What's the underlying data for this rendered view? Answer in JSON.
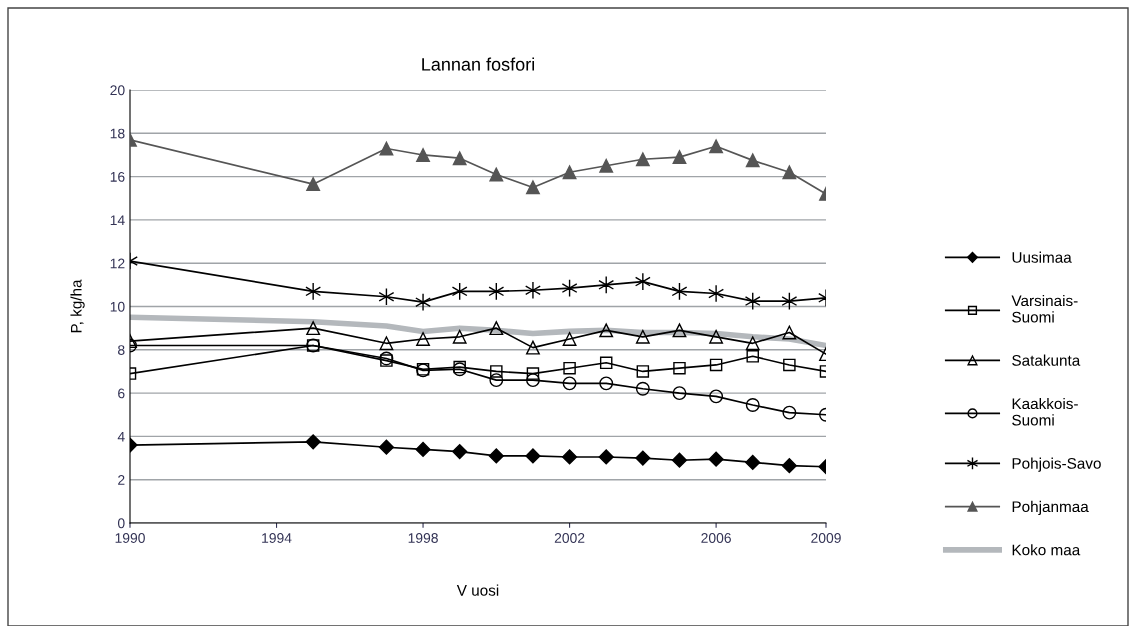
{
  "chart_data": {
    "type": "line",
    "title": "Lannan fosfori",
    "xlabel": "V uosi",
    "ylabel": "P, kg/ha",
    "x": [
      1990,
      1995,
      1997,
      1998,
      1999,
      2000,
      2001,
      2002,
      2003,
      2004,
      2005,
      2006,
      2007,
      2008,
      2009
    ],
    "xlim": [
      1990,
      2009
    ],
    "xticks": [
      1990,
      1994,
      1998,
      2002,
      2006,
      2009
    ],
    "ylim": [
      0,
      20
    ],
    "yticks": [
      0,
      2,
      4,
      6,
      8,
      10,
      12,
      14,
      16,
      18,
      20
    ],
    "grid": "y",
    "legend": "right",
    "series": [
      {
        "name": "Uusimaa",
        "color": "#000000",
        "marker": "diamond",
        "values": [
          3.6,
          3.75,
          3.5,
          3.4,
          3.3,
          3.1,
          3.1,
          3.05,
          3.05,
          3.0,
          2.9,
          2.95,
          2.8,
          2.65,
          2.6
        ]
      },
      {
        "name": "Varsinais-\nSuomi",
        "color": "#000000",
        "marker": "square",
        "values": [
          6.9,
          8.2,
          7.5,
          7.1,
          7.2,
          7.0,
          6.9,
          7.15,
          7.4,
          7.0,
          7.15,
          7.3,
          7.7,
          7.3,
          7.0
        ]
      },
      {
        "name": "Satakunta",
        "color": "#000000",
        "marker": "triangle",
        "values": [
          8.4,
          9.0,
          8.3,
          8.5,
          8.6,
          9.0,
          8.1,
          8.5,
          8.9,
          8.6,
          8.9,
          8.6,
          8.3,
          8.8,
          7.8
        ]
      },
      {
        "name": "Kaakkois-\nSuomi",
        "color": "#000000",
        "marker": "circle",
        "values": [
          8.2,
          8.2,
          7.6,
          7.05,
          7.1,
          6.6,
          6.6,
          6.45,
          6.45,
          6.2,
          6.0,
          5.85,
          5.45,
          5.1,
          5.0
        ]
      },
      {
        "name": "Pohjois-Savo",
        "color": "#000000",
        "marker": "cross",
        "values": [
          12.1,
          10.7,
          10.45,
          10.2,
          10.7,
          10.7,
          10.75,
          10.85,
          11.0,
          11.15,
          10.7,
          10.6,
          10.25,
          10.25,
          10.4
        ]
      },
      {
        "name": "Pohjanmaa",
        "color": "#555555",
        "marker": "triangle",
        "values": [
          17.7,
          15.65,
          17.3,
          17.0,
          16.85,
          16.1,
          15.5,
          16.2,
          16.5,
          16.8,
          16.9,
          17.4,
          16.75,
          16.2,
          15.2
        ]
      },
      {
        "name": "Koko maa",
        "color": "#b4b8bc",
        "marker": "none",
        "values": [
          9.5,
          9.3,
          9.1,
          8.85,
          9.0,
          8.9,
          8.75,
          8.85,
          8.9,
          8.8,
          8.8,
          8.75,
          8.6,
          8.5,
          8.2
        ]
      }
    ]
  }
}
